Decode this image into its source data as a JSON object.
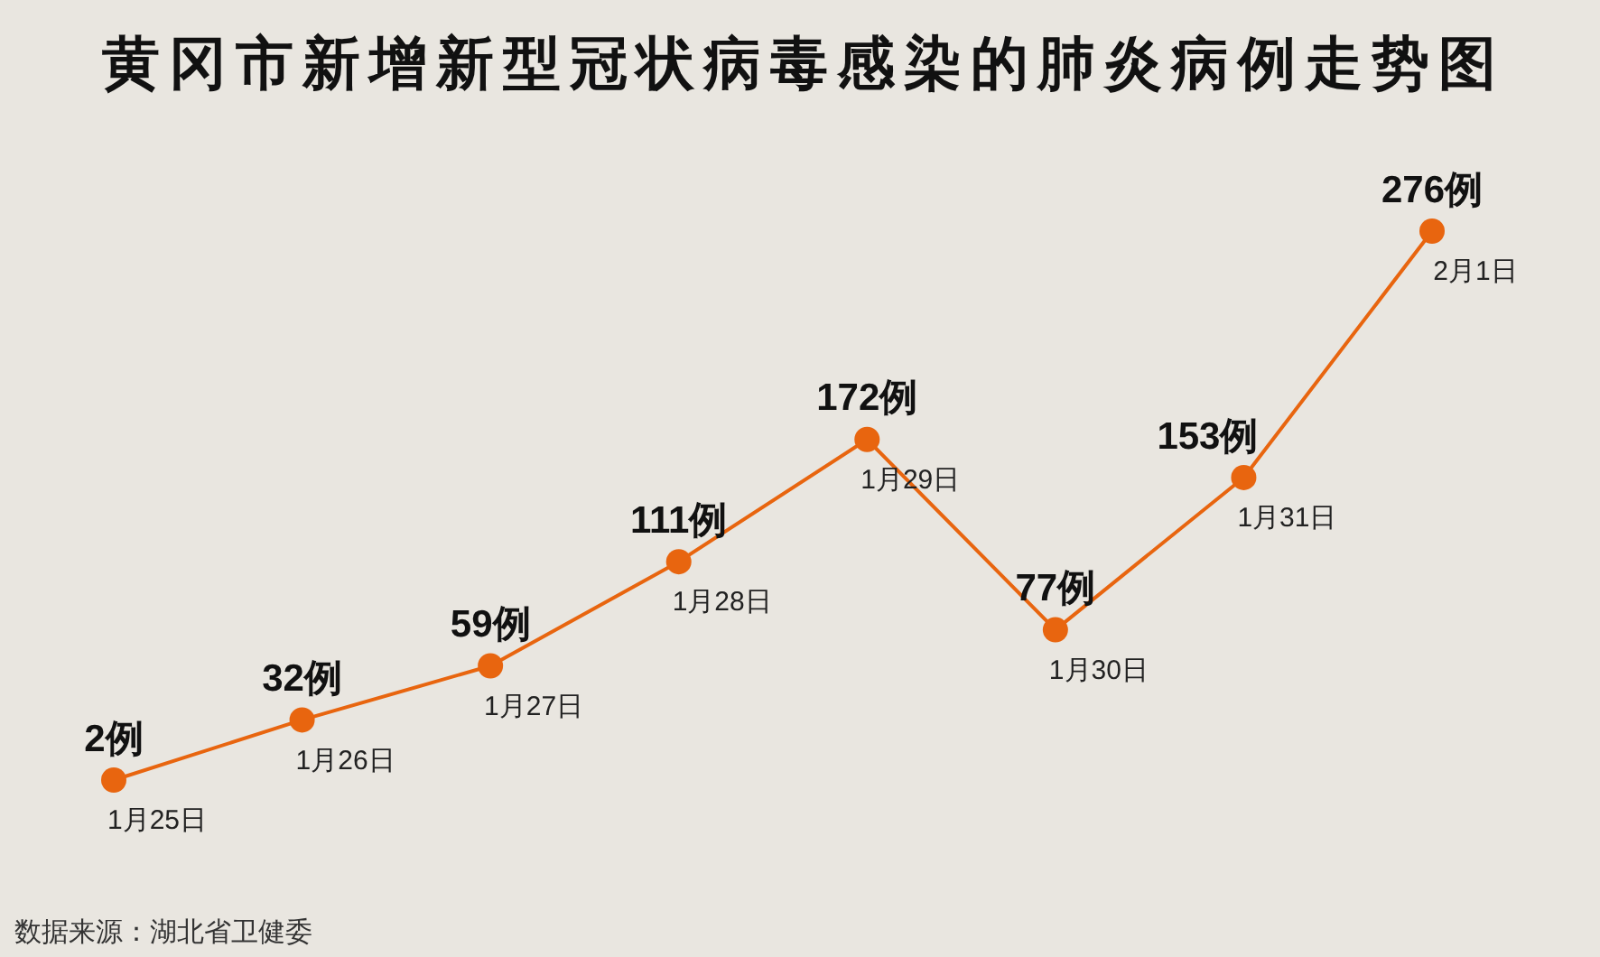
{
  "chart_data": {
    "type": "line",
    "title": "黄冈市新增新型冠状病毒感染的肺炎病例走势图",
    "categories": [
      "1月25日",
      "1月26日",
      "1月27日",
      "1月28日",
      "1月29日",
      "1月30日",
      "1月31日",
      "2月1日"
    ],
    "values": [
      2,
      32,
      59,
      111,
      172,
      77,
      153,
      276
    ],
    "color": "#e8650f",
    "value_labels": [
      "2例",
      "32例",
      "59例",
      "111例",
      "172例",
      "77例",
      "153例",
      "276例"
    ],
    "marker": "circle",
    "line_style": "solid",
    "grid": false,
    "legend": false,
    "annotations": [
      "数据来源：湖北省卫健委"
    ]
  }
}
